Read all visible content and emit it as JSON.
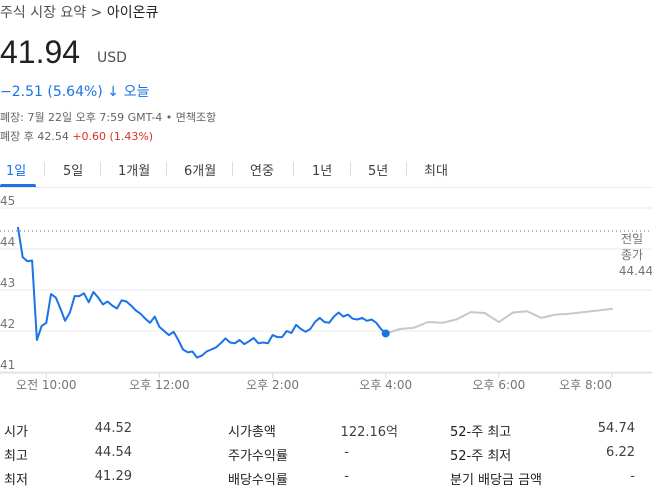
{
  "breadcrumb": {
    "prefix": "주식 시장 요약 > ",
    "company": "아이온큐"
  },
  "quote": {
    "price": "41.94",
    "currency": "USD",
    "change": "−2.51 (5.64%)",
    "change_arrow": "↓",
    "period": "오늘",
    "closed_line": "폐장: 7월 22일 오후 7:59 GMT-4 • 면책조항",
    "after_hours_label": "폐장 후 42.54",
    "after_hours_change": "+0.60 (1.43%)"
  },
  "tabs": [
    "1일",
    "5일",
    "1개월",
    "6개월",
    "연중",
    "1년",
    "5년",
    "최대"
  ],
  "active_tab": "1일",
  "colors": {
    "accent": "#1a73e8",
    "after_hours": "#c8c8c8",
    "negative": "#d93025"
  },
  "chart_data": {
    "type": "line",
    "ylim": [
      41,
      45
    ],
    "y_ticks": [
      "45",
      "44",
      "43",
      "42",
      "41"
    ],
    "x_ticks": [
      "오전 10:00",
      "오후 12:00",
      "오후 2:00",
      "오후 4:00",
      "오후 6:00",
      "오후 8:00"
    ],
    "prev_close": {
      "label_line1": "전일",
      "label_line2": "종가",
      "value": "44.44",
      "y": 44.44
    },
    "time_range": [
      "09:30",
      "20:00"
    ],
    "series": [
      {
        "session": "regular",
        "x": [
          "09:30",
          "09:35",
          "09:40",
          "09:45",
          "09:50",
          "09:55",
          "10:00",
          "10:05",
          "10:10",
          "10:15",
          "10:20",
          "10:25",
          "10:30",
          "10:35",
          "10:40",
          "10:45",
          "10:50",
          "10:55",
          "11:00",
          "11:05",
          "11:10",
          "11:15",
          "11:20",
          "11:25",
          "11:30",
          "11:35",
          "11:40",
          "11:45",
          "11:50",
          "11:55",
          "12:00",
          "12:05",
          "12:10",
          "12:15",
          "12:20",
          "12:25",
          "12:30",
          "12:35",
          "12:40",
          "12:45",
          "12:50",
          "12:55",
          "13:00",
          "13:05",
          "13:10",
          "13:15",
          "13:20",
          "13:25",
          "13:30",
          "13:35",
          "13:40",
          "13:45",
          "13:50",
          "13:55",
          "14:00",
          "14:05",
          "14:10",
          "14:15",
          "14:20",
          "14:25",
          "14:30",
          "14:35",
          "14:40",
          "14:45",
          "14:50",
          "14:55",
          "15:00",
          "15:05",
          "15:10",
          "15:15",
          "15:20",
          "15:25",
          "15:30",
          "15:35",
          "15:40",
          "15:45",
          "15:50",
          "15:55",
          "16:00"
        ],
        "y": [
          44.52,
          43.8,
          43.7,
          43.72,
          41.78,
          42.12,
          42.2,
          42.9,
          42.82,
          42.55,
          42.25,
          42.45,
          42.85,
          42.85,
          42.92,
          42.7,
          42.95,
          42.82,
          42.65,
          42.72,
          42.62,
          42.55,
          42.75,
          42.72,
          42.62,
          42.5,
          42.42,
          42.3,
          42.2,
          42.35,
          42.1,
          42.0,
          41.9,
          41.98,
          41.78,
          41.55,
          41.48,
          41.5,
          41.35,
          41.4,
          41.5,
          41.55,
          41.6,
          41.7,
          41.82,
          41.72,
          41.7,
          41.78,
          41.68,
          41.75,
          41.83,
          41.7,
          41.72,
          41.7,
          41.9,
          41.85,
          41.85,
          42.0,
          41.95,
          42.15,
          42.05,
          41.98,
          42.05,
          42.22,
          42.32,
          42.22,
          42.2,
          42.35,
          42.45,
          42.35,
          42.4,
          42.3,
          42.28,
          42.32,
          42.25,
          42.28,
          42.2,
          42.05,
          41.94
        ]
      },
      {
        "session": "after_hours",
        "x": [
          "16:00",
          "16:15",
          "16:30",
          "16:45",
          "17:00",
          "17:15",
          "17:30",
          "17:45",
          "18:00",
          "18:15",
          "18:30",
          "18:45",
          "19:00",
          "19:15",
          "19:30",
          "19:45",
          "20:00"
        ],
        "y": [
          41.94,
          42.05,
          42.08,
          42.22,
          42.2,
          42.28,
          42.46,
          42.44,
          42.22,
          42.45,
          42.48,
          42.32,
          42.4,
          42.42,
          42.46,
          42.5,
          42.54
        ]
      }
    ]
  },
  "stats": [
    {
      "label": "시가",
      "value": "44.52"
    },
    {
      "label": "최고",
      "value": "44.54"
    },
    {
      "label": "최저",
      "value": "41.29"
    },
    {
      "label": "시가총액",
      "value": "122.16억"
    },
    {
      "label": "주가수익률",
      "value": "-"
    },
    {
      "label": "배당수익률",
      "value": "-"
    },
    {
      "label": "52-주 최고",
      "value": "54.74"
    },
    {
      "label": "52-주 최저",
      "value": "6.22"
    },
    {
      "label": "분기 배당금 금액",
      "value": "-"
    }
  ]
}
